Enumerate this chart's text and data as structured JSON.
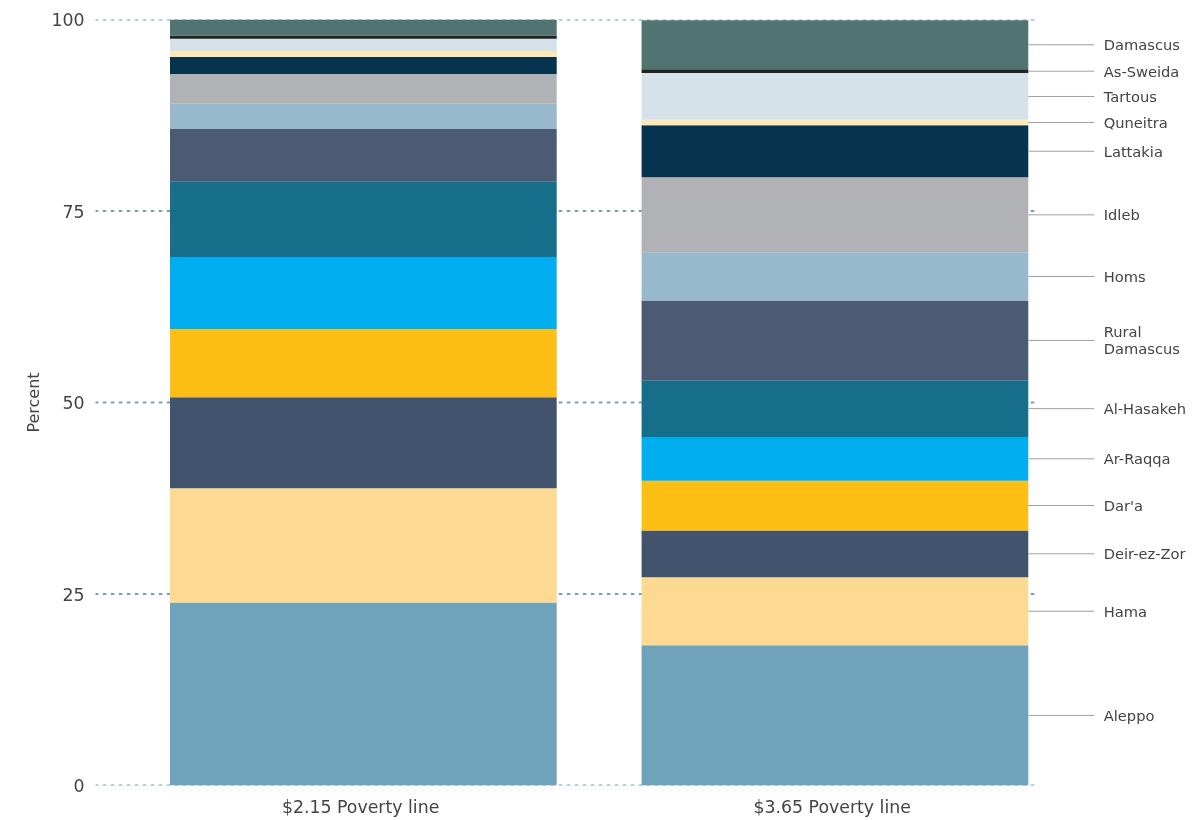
{
  "chart_data": {
    "type": "bar",
    "stacked": true,
    "ylabel": "Percent",
    "categories": [
      "$2.15  Poverty line",
      "$3.65  Poverty line"
    ],
    "ylim": [
      0,
      100
    ],
    "yticks": [
      0,
      25,
      50,
      75,
      100
    ],
    "grid": "y",
    "legend": false,
    "series": [
      {
        "name": "Aleppo",
        "color": "#6fa3bb",
        "values": [
          23.9,
          18.3
        ]
      },
      {
        "name": "Hama",
        "color": "#fdd992",
        "values": [
          14.9,
          8.9
        ]
      },
      {
        "name": "Deir-ez-Zor",
        "color": "#42546d",
        "values": [
          11.9,
          6.1
        ]
      },
      {
        "name": "Dar'a",
        "color": "#fdbe16",
        "values": [
          8.9,
          6.5
        ]
      },
      {
        "name": "Ar-Raqqa",
        "color": "#00adee",
        "values": [
          9.4,
          5.7
        ]
      },
      {
        "name": "Al-Hasakeh",
        "color": "#166e8a",
        "values": [
          9.9,
          7.4
        ]
      },
      {
        "name": "Rural Damascus",
        "color": "#4b5b73",
        "values": [
          6.8,
          10.4
        ]
      },
      {
        "name": "Homs",
        "color": "#98b8cc",
        "values": [
          3.3,
          6.3
        ]
      },
      {
        "name": "Idleb",
        "color": "#b1b2b6",
        "values": [
          3.9,
          9.8
        ]
      },
      {
        "name": "Lattakia",
        "color": "#06334e",
        "values": [
          2.2,
          6.8
        ]
      },
      {
        "name": "Quneitra",
        "color": "#fde8b6",
        "values": [
          0.8,
          0.7
        ]
      },
      {
        "name": "Tartous",
        "color": "#d6e2ea",
        "values": [
          1.6,
          6.1
        ]
      },
      {
        "name": "As-Sweida",
        "color": "#222222",
        "values": [
          0.4,
          0.5
        ]
      },
      {
        "name": "Damascus",
        "color": "#517473",
        "values": [
          2.1,
          6.4
        ]
      }
    ]
  }
}
